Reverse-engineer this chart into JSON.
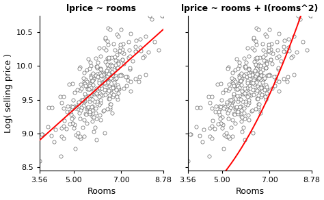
{
  "title_left": "lprice ~ rooms",
  "title_right": "lprice ~ rooms + I(rooms^2)",
  "ylabel": "Log( selling price )",
  "xlabel": "Rooms",
  "xlim": [
    3.56,
    8.78
  ],
  "ylim": [
    8.45,
    10.75
  ],
  "xticks": [
    3.56,
    5.0,
    7.0,
    8.78
  ],
  "yticks": [
    8.5,
    9.0,
    9.5,
    10.0,
    10.5
  ],
  "point_color": "white",
  "point_edgecolor": "#666666",
  "line_color": "red",
  "figsize": [
    4.74,
    2.92
  ],
  "dpi": 100,
  "seed": 42,
  "n_points": 320,
  "linear_intercept": 7.72,
  "linear_slope": 0.32,
  "quad_b0": 8.35,
  "quad_b1": -0.42,
  "quad_b2": 0.085,
  "noise_std": 0.26
}
